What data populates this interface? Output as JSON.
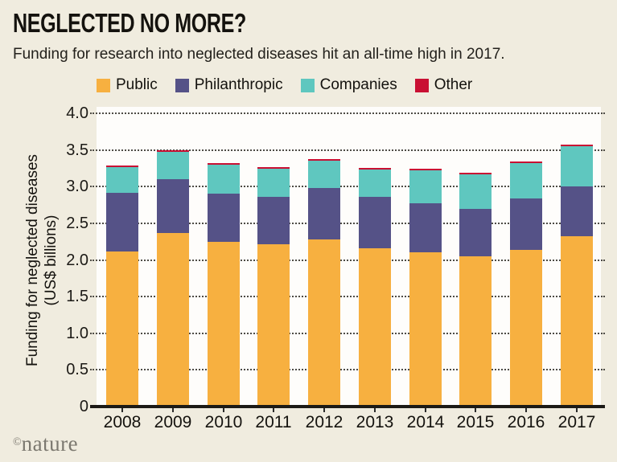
{
  "header": {
    "title": "NEGLECTED NO MORE?",
    "subtitle": "Funding for research into neglected diseases hit an all-time high in 2017."
  },
  "credit": {
    "copyright": "©",
    "brand": "nature"
  },
  "colors": {
    "background": "#f0ecdf",
    "plot_background": "#fefdfb",
    "axis": "#1c1a16",
    "public": "#f7b040",
    "philanthropic": "#555287",
    "companies": "#5fc7bf",
    "other": "#c91033"
  },
  "chart_data": {
    "type": "bar",
    "stacked": true,
    "title": "NEGLECTED NO MORE?",
    "subtitle": "Funding for research into neglected diseases hit an all-time high in 2017.",
    "categories": [
      "2008",
      "2009",
      "2010",
      "2011",
      "2012",
      "2013",
      "2014",
      "2015",
      "2016",
      "2017"
    ],
    "series": [
      {
        "name": "Public",
        "color": "#f7b040",
        "values": [
          2.11,
          2.38,
          2.25,
          2.22,
          2.29,
          2.17,
          2.1,
          2.05,
          2.14,
          2.32
        ]
      },
      {
        "name": "Philanthropic",
        "color": "#555287",
        "values": [
          0.81,
          0.73,
          0.65,
          0.65,
          0.7,
          0.7,
          0.67,
          0.65,
          0.7,
          0.68
        ]
      },
      {
        "name": "Companies",
        "color": "#5fc7bf",
        "values": [
          0.35,
          0.37,
          0.4,
          0.38,
          0.37,
          0.37,
          0.45,
          0.47,
          0.48,
          0.55
        ]
      },
      {
        "name": "Other",
        "color": "#c91033",
        "values": [
          0.02,
          0.02,
          0.02,
          0.02,
          0.02,
          0.02,
          0.02,
          0.02,
          0.02,
          0.02
        ]
      }
    ],
    "totals": [
      3.29,
      3.5,
      3.32,
      3.27,
      3.38,
      3.26,
      3.24,
      3.19,
      3.34,
      3.57
    ],
    "ylabel_lines": [
      "Funding for neglected diseases",
      "(US$ billions)"
    ],
    "yticks": [
      {
        "label": "4.0",
        "value": 4.0
      },
      {
        "label": "3.5",
        "value": 3.5
      },
      {
        "label": "3.0",
        "value": 3.0
      },
      {
        "label": "2.5",
        "value": 2.5
      },
      {
        "label": "2.0",
        "value": 2.0
      },
      {
        "label": "1.5",
        "value": 1.5
      },
      {
        "label": "1.0",
        "value": 1.0
      },
      {
        "label": "0.5",
        "value": 0.5
      },
      {
        "label": "0",
        "value": 0.0
      }
    ],
    "ylim": [
      0,
      4
    ],
    "grid": "dotted horizontal",
    "legend_position": "top"
  }
}
